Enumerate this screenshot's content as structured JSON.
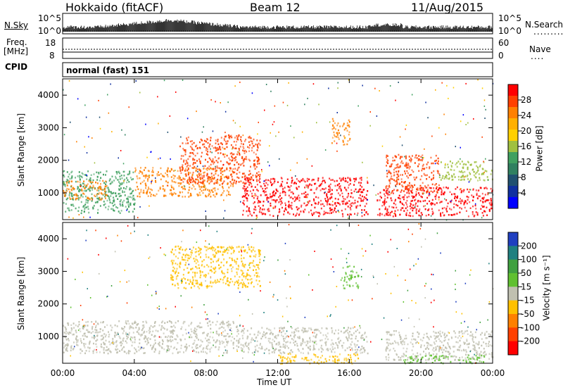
{
  "header": {
    "station": "Hokkaido (fitACF)",
    "beam": "Beam 12",
    "date": "11/Aug/2015"
  },
  "top_panels": {
    "nsky_label": "N.Sky",
    "nsky_ticks": [
      "10^5",
      "10^0"
    ],
    "nsearch_label": "N.Search",
    "nsearch_ticks": [
      "10^5",
      "10^0"
    ],
    "freq_label": "Freq.",
    "freq_unit": "[MHz]",
    "freq_ticks": [
      "18",
      "8"
    ],
    "nave_label": "Nave",
    "nave_ticks": [
      "60",
      "0"
    ],
    "cpid_label": "CPID",
    "cpid_value": "normal (fast) 151"
  },
  "chart_data": [
    {
      "type": "heatmap",
      "name": "power",
      "ylabel": "Slant Range [km]",
      "xlabel": "",
      "xlim": [
        "00:00",
        "24:00"
      ],
      "ylim": [
        180,
        4500
      ],
      "y_ticks": [
        "4000",
        "3000",
        "2000",
        "1000"
      ],
      "colorbar": {
        "label": "Power [dB]",
        "ticks": [
          "28",
          "24",
          "20",
          "16",
          "12",
          "8",
          "4"
        ],
        "colors": [
          "#ff0000",
          "#ff4000",
          "#ff8000",
          "#ffb000",
          "#ffd000",
          "#a0c040",
          "#40a060",
          "#308060",
          "#205070",
          "#1030a0",
          "#0000ff"
        ]
      },
      "features": [
        {
          "t0": 0.0,
          "t1": 4.0,
          "r0": 400,
          "r1": 1700,
          "color": "#40a060"
        },
        {
          "t0": 0.0,
          "t1": 2.5,
          "r0": 800,
          "r1": 1400,
          "color": "#ff8000"
        },
        {
          "t0": 4.0,
          "t1": 9.5,
          "r0": 900,
          "r1": 1800,
          "color": "#ff8000"
        },
        {
          "t0": 6.5,
          "t1": 11.0,
          "r0": 1300,
          "r1": 2800,
          "color": "#ff4000"
        },
        {
          "t0": 10.0,
          "t1": 17.0,
          "r0": 300,
          "r1": 1500,
          "color": "#ff0000"
        },
        {
          "t0": 15.0,
          "t1": 16.0,
          "r0": 2500,
          "r1": 3300,
          "color": "#ff8000"
        },
        {
          "t0": 17.5,
          "t1": 24.0,
          "r0": 300,
          "r1": 1200,
          "color": "#ff0000"
        },
        {
          "t0": 18.0,
          "t1": 21.0,
          "r0": 1000,
          "r1": 2200,
          "color": "#ff4000"
        },
        {
          "t0": 21.0,
          "t1": 24.0,
          "r0": 1400,
          "r1": 2000,
          "color": "#a0c040"
        }
      ]
    },
    {
      "type": "heatmap",
      "name": "velocity",
      "ylabel": "Slant Range [km]",
      "xlabel": "Time UT",
      "x_ticks": [
        "00:00",
        "04:00",
        "08:00",
        "12:00",
        "16:00",
        "20:00",
        "00:00"
      ],
      "y_ticks": [
        "4000",
        "3000",
        "2000",
        "1000"
      ],
      "ylim": [
        180,
        4500
      ],
      "colorbar": {
        "label": "Velocity [m s⁻¹]",
        "ticks": [
          "200",
          "100",
          "50",
          "15",
          "-15",
          "-50",
          "-100",
          "-200"
        ],
        "colors": [
          "#2040c0",
          "#208080",
          "#40a040",
          "#60c030",
          "#c0c0b0",
          "#ffc000",
          "#ff8000",
          "#ff4000",
          "#ff0000"
        ]
      },
      "features": [
        {
          "t0": 0.0,
          "t1": 10.0,
          "r0": 500,
          "r1": 1500,
          "color": "#c0c0b0"
        },
        {
          "t0": 10.0,
          "t1": 17.0,
          "r0": 500,
          "r1": 1300,
          "color": "#c0c0b0"
        },
        {
          "t0": 12.0,
          "t1": 16.5,
          "r0": 180,
          "r1": 500,
          "color": "#ffc000"
        },
        {
          "t0": 15.5,
          "t1": 16.5,
          "r0": 2500,
          "r1": 3200,
          "color": "#60c030"
        },
        {
          "t0": 18.0,
          "t1": 24.0,
          "r0": 300,
          "r1": 1200,
          "color": "#c0c0b0"
        },
        {
          "t0": 19.0,
          "t1": 23.5,
          "r0": 200,
          "r1": 450,
          "color": "#60c030"
        },
        {
          "t0": 6.0,
          "t1": 11.0,
          "r0": 2500,
          "r1": 3800,
          "color": "#ffc000"
        }
      ]
    }
  ]
}
